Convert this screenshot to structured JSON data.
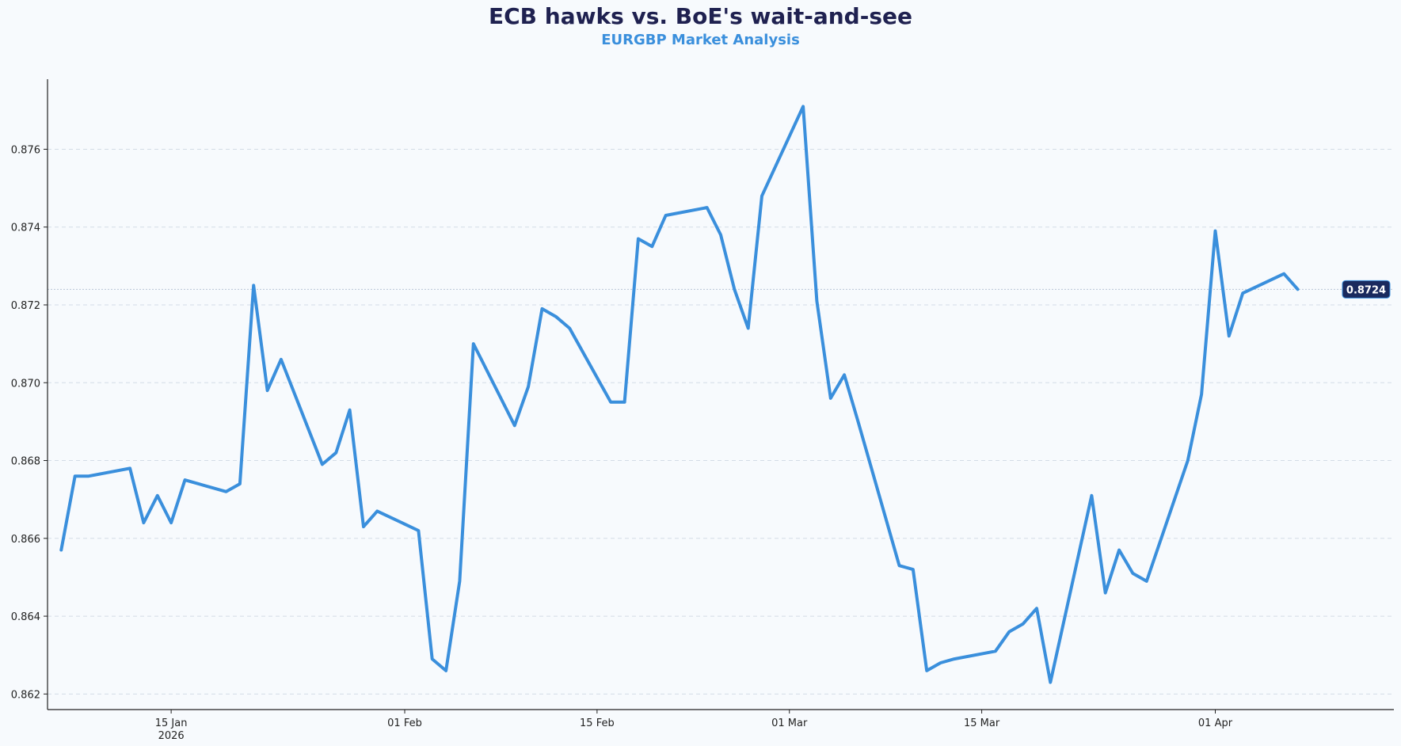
{
  "title": "ECB hawks vs. BoE's wait-and-see",
  "subtitle": "EURGBP Market Analysis",
  "colors": {
    "line": "#3a8fdc",
    "title": "#1f2150",
    "subtitle": "#3a8fdc",
    "badge_bg": "#1a2a5e",
    "grid": "#d3dce6",
    "background": "#f7fafd"
  },
  "chart_data": {
    "type": "line",
    "title": "ECB hawks vs. BoE's wait-and-see",
    "subtitle": "EURGBP Market Analysis",
    "xlabel": "",
    "ylabel": "",
    "ylim": [
      0.8616,
      0.8778
    ],
    "xlim": [
      "2026-01-06",
      "2026-04-14"
    ],
    "grid": "horizontal dashed",
    "y_ticks": [
      "0.862",
      "0.864",
      "0.866",
      "0.868",
      "0.870",
      "0.872",
      "0.874",
      "0.876"
    ],
    "x_ticks": [
      {
        "date": "2026-01-15",
        "label": "15 Jan",
        "label2": "2026"
      },
      {
        "date": "2026-02-01",
        "label": "01 Feb",
        "label2": ""
      },
      {
        "date": "2026-02-15",
        "label": "15 Feb",
        "label2": ""
      },
      {
        "date": "2026-03-01",
        "label": "01 Mar",
        "label2": ""
      },
      {
        "date": "2026-03-15",
        "label": "15 Mar",
        "label2": ""
      },
      {
        "date": "2026-04-01",
        "label": "01 Apr",
        "label2": ""
      }
    ],
    "last_value_label": "0.8724",
    "series": [
      {
        "x": [
          "2026-01-07",
          "2026-01-08",
          "2026-01-09",
          "2026-01-12",
          "2026-01-13",
          "2026-01-14",
          "2026-01-15",
          "2026-01-16",
          "2026-01-19",
          "2026-01-20",
          "2026-01-21",
          "2026-01-22",
          "2026-01-23",
          "2026-01-26",
          "2026-01-27",
          "2026-01-28",
          "2026-01-29",
          "2026-01-30",
          "2026-02-02",
          "2026-02-03",
          "2026-02-04",
          "2026-02-05",
          "2026-02-06",
          "2026-02-09",
          "2026-02-10",
          "2026-02-11",
          "2026-02-12",
          "2026-02-13",
          "2026-02-16",
          "2026-02-17",
          "2026-02-18",
          "2026-02-19",
          "2026-02-20",
          "2026-02-23",
          "2026-02-24",
          "2026-02-25",
          "2026-02-26",
          "2026-02-27",
          "2026-03-02",
          "2026-03-03",
          "2026-03-04",
          "2026-03-05",
          "2026-03-06",
          "2026-03-09",
          "2026-03-10",
          "2026-03-11",
          "2026-03-12",
          "2026-03-13",
          "2026-03-16",
          "2026-03-17",
          "2026-03-18",
          "2026-03-19",
          "2026-03-20",
          "2026-03-23",
          "2026-03-24",
          "2026-03-25",
          "2026-03-26",
          "2026-03-27",
          "2026-03-30",
          "2026-03-31",
          "2026-04-01",
          "2026-04-02",
          "2026-04-03",
          "2026-04-06",
          "2026-04-07"
        ],
        "y": [
          0.8657,
          0.8676,
          0.8676,
          0.8678,
          0.8664,
          0.8671,
          0.8664,
          0.8675,
          0.8672,
          0.8674,
          0.8725,
          0.8698,
          0.8706,
          0.8679,
          0.8682,
          0.8693,
          0.8663,
          0.8667,
          0.8662,
          0.8629,
          0.8626,
          0.8649,
          0.871,
          0.8689,
          0.8699,
          0.8719,
          0.8717,
          0.8714,
          0.8695,
          0.8695,
          0.8737,
          0.8735,
          0.8743,
          0.8745,
          0.8738,
          0.8724,
          0.8714,
          0.8748,
          0.8771,
          0.8721,
          0.8696,
          0.8702,
          0.869,
          0.8653,
          0.8652,
          0.8626,
          0.8628,
          0.8629,
          0.8631,
          0.8636,
          0.8638,
          0.8642,
          0.8623,
          0.8671,
          0.8646,
          0.8657,
          0.8651,
          0.8649,
          0.868,
          0.8697,
          0.8739,
          0.8712,
          0.8723,
          0.8728,
          0.8724
        ]
      }
    ]
  }
}
